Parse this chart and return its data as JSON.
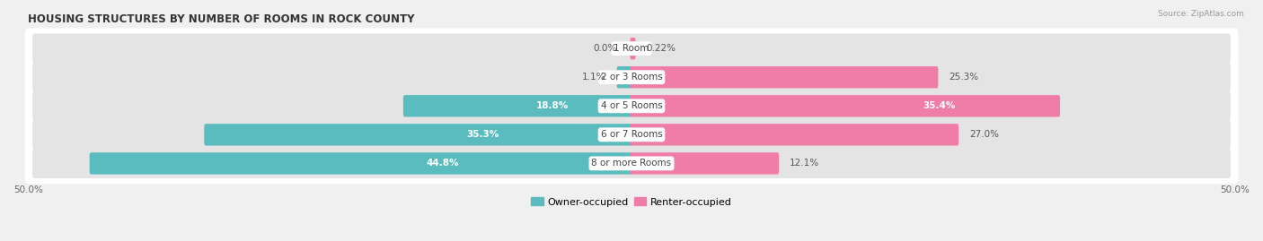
{
  "title": "HOUSING STRUCTURES BY NUMBER OF ROOMS IN ROCK COUNTY",
  "source": "Source: ZipAtlas.com",
  "categories": [
    "1 Room",
    "2 or 3 Rooms",
    "4 or 5 Rooms",
    "6 or 7 Rooms",
    "8 or more Rooms"
  ],
  "owner_values": [
    0.0,
    1.1,
    18.8,
    35.3,
    44.8
  ],
  "renter_values": [
    0.22,
    25.3,
    35.4,
    27.0,
    12.1
  ],
  "owner_color": "#5bbcbf",
  "renter_color": "#f07ca8",
  "axis_max": 50.0,
  "axis_min": -50.0,
  "background_color": "#f0f0f0",
  "bar_bg_color": "#e4e4e4",
  "title_fontsize": 8.5,
  "bar_label_fontsize": 7.5,
  "category_fontsize": 7.5,
  "axis_fontsize": 7.5,
  "legend_fontsize": 8
}
